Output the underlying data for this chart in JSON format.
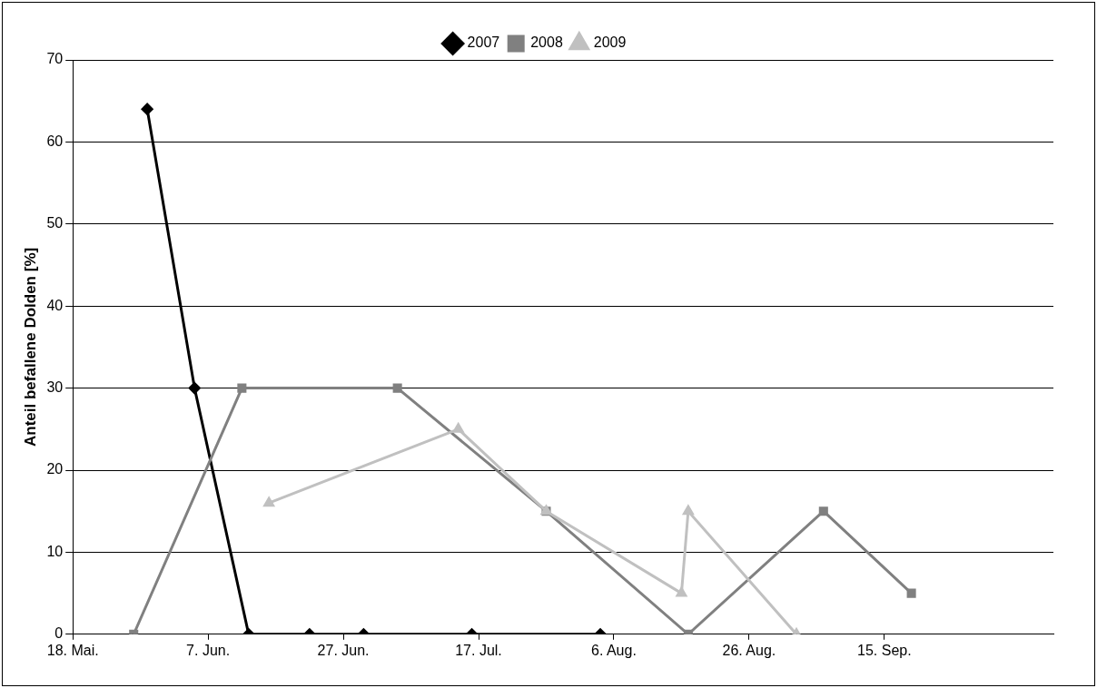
{
  "chart_data": {
    "type": "line",
    "ylabel": "Anteil befallene Dolden [%]",
    "xlim": [
      "--05-18",
      "--10-10"
    ],
    "xticks": [
      {
        "value": "--05-18",
        "label": "18. Mai."
      },
      {
        "value": "--06-07",
        "label": "7. Jun."
      },
      {
        "value": "--06-27",
        "label": "27. Jun."
      },
      {
        "value": "--07-17",
        "label": "17. Jul."
      },
      {
        "value": "--08-06",
        "label": "6. Aug."
      },
      {
        "value": "--08-26",
        "label": "26. Aug."
      },
      {
        "value": "--09-15",
        "label": "15. Sep."
      }
    ],
    "ylim": [
      0,
      70
    ],
    "yticks": [
      0,
      10,
      20,
      30,
      40,
      50,
      60,
      70
    ],
    "grid": "y",
    "legend": "top",
    "series": [
      {
        "name": "2007",
        "color": "#000000",
        "marker": "diamond",
        "x": [
          "--05-29",
          "--06-05",
          "--06-13",
          "--06-22",
          "--06-30",
          "--07-16",
          "--08-04"
        ],
        "values": [
          64,
          30,
          0,
          0,
          0,
          0,
          0
        ]
      },
      {
        "name": "2008",
        "color": "#808080",
        "marker": "square",
        "x": [
          "--05-27",
          "--06-12",
          "--07-05",
          "--07-27",
          "--08-17",
          "--09-06",
          "--09-19"
        ],
        "values": [
          0,
          30,
          30,
          15,
          0,
          15,
          5
        ]
      },
      {
        "name": "2009",
        "color": "#c0c0c0",
        "marker": "triangle",
        "x": [
          "--06-16",
          "--07-14",
          "--07-27",
          "--08-16",
          "--08-17",
          "--09-02"
        ],
        "values": [
          16,
          25,
          15,
          5,
          15,
          0
        ]
      }
    ]
  }
}
